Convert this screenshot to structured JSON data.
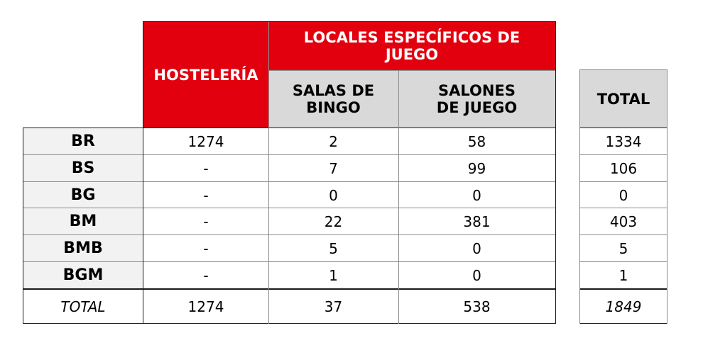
{
  "headers": {
    "hosteleria": "HOSTELERÍA",
    "locales": "LOCALES ESPECÍFICOS DE JUEGO",
    "salas_bingo": "SALAS DE BINGO",
    "salones_juego": "SALONES DE JUEGO",
    "total": "TOTAL"
  },
  "rows": [
    {
      "label": "BR",
      "hosteleria": "1274",
      "salas": "2",
      "salones": "58",
      "total": "1334"
    },
    {
      "label": "BS",
      "hosteleria": "-",
      "salas": "7",
      "salones": "99",
      "total": "106"
    },
    {
      "label": "BG",
      "hosteleria": "-",
      "salas": "0",
      "salones": "0",
      "total": "0"
    },
    {
      "label": "BM",
      "hosteleria": "-",
      "salas": "22",
      "salones": "381",
      "total": "403"
    },
    {
      "label": "BMB",
      "hosteleria": "-",
      "salas": "5",
      "salones": "0",
      "total": "5"
    },
    {
      "label": "BGM",
      "hosteleria": "-",
      "salas": "1",
      "salones": "0",
      "total": "1"
    }
  ],
  "totals": {
    "label": "TOTAL",
    "hosteleria": "1274",
    "salas": "37",
    "salones": "538",
    "total": "1849"
  },
  "colors": {
    "header_red": "#e2000f",
    "header_gray": "#d9d9d9",
    "row_label_bg": "#f2f2f2"
  }
}
